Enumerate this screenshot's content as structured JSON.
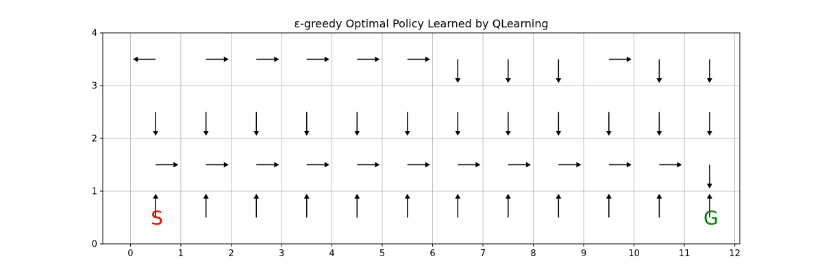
{
  "chart_data": {
    "type": "policy-grid",
    "title": "ε-greedy Optimal Policy Learned by QLearning",
    "xlim": [
      -0.55,
      12.1
    ],
    "ylim": [
      0,
      4
    ],
    "xticks": [
      0,
      1,
      2,
      3,
      4,
      5,
      6,
      7,
      8,
      9,
      10,
      11,
      12
    ],
    "yticks": [
      0,
      1,
      2,
      3,
      4
    ],
    "grid": true,
    "start": {
      "label": "S",
      "x": 0.5,
      "y": 0.5,
      "color": "#ff0000"
    },
    "goal": {
      "label": "G",
      "x": 11.5,
      "y": 0.5,
      "color": "#008000"
    },
    "policy": [
      [
        "up",
        "up",
        "up",
        "up",
        "up",
        "up",
        "up",
        "up",
        "up",
        "up",
        "up",
        "up"
      ],
      [
        "right",
        "right",
        "right",
        "right",
        "right",
        "right",
        "right",
        "right",
        "right",
        "right",
        "right",
        "down"
      ],
      [
        "down",
        "down",
        "down",
        "down",
        "down",
        "down",
        "down",
        "down",
        "down",
        "down",
        "down",
        "down"
      ],
      [
        "left",
        "right",
        "right",
        "right",
        "right",
        "right",
        "down",
        "down",
        "down",
        "right",
        "down",
        "down"
      ]
    ]
  }
}
